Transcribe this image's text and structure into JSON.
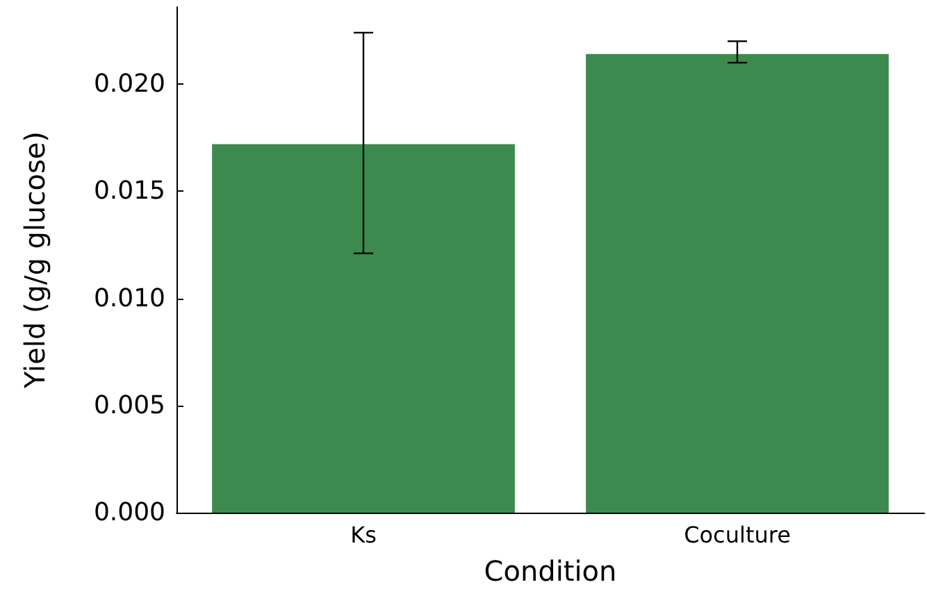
{
  "chart_data": {
    "type": "bar",
    "xlabel": "Condition",
    "ylabel": "Yield (g/g glucose)",
    "categories": [
      "Ks",
      "Coculture"
    ],
    "values": [
      0.0172,
      0.0214
    ],
    "errors": [
      [
        0.0121,
        0.0224
      ],
      [
        0.021,
        0.022
      ]
    ],
    "color": "#3d8a4f",
    "ylim": [
      0,
      0.0236
    ],
    "yticks": [
      {
        "value": 0,
        "label": "0.000"
      },
      {
        "value": 0.005,
        "label": "0.005"
      },
      {
        "value": 0.01,
        "label": "0.010"
      },
      {
        "value": 0.015,
        "label": "0.015"
      },
      {
        "value": 0.02,
        "label": "0.020"
      }
    ],
    "grid": false
  }
}
